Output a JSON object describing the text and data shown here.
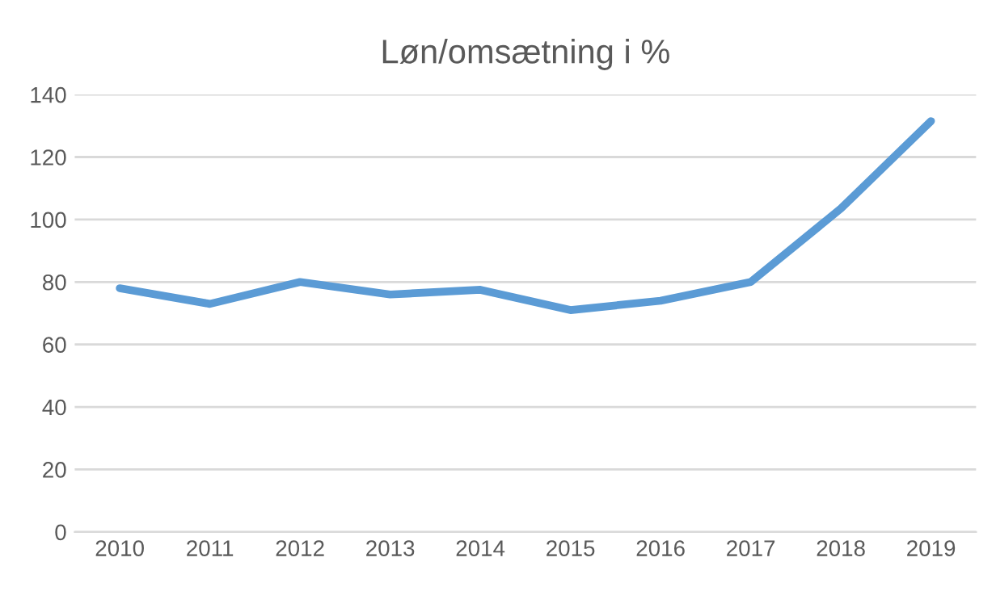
{
  "chart_data": {
    "type": "line",
    "title": "Løn/omsætning i %",
    "categories": [
      "2010",
      "2011",
      "2012",
      "2013",
      "2014",
      "2015",
      "2016",
      "2017",
      "2018",
      "2019"
    ],
    "series": [
      {
        "color": "#5b9bd5",
        "values": [
          78,
          73,
          80,
          76,
          77.5,
          71,
          74,
          80,
          103.5,
          131.5
        ]
      }
    ],
    "ylim": [
      0,
      140
    ],
    "yticks": [
      0,
      20,
      40,
      60,
      80,
      100,
      120,
      140
    ],
    "grid": "y",
    "legend": false
  }
}
